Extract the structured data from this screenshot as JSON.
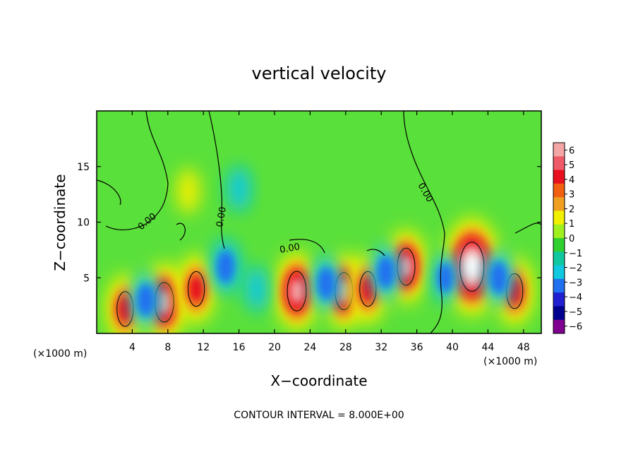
{
  "chart_data": {
    "type": "heatmap",
    "title": "vertical velocity",
    "xlabel": "X−coordinate",
    "ylabel": "Z−coordinate",
    "x_unit": "(×1000 m)",
    "x_unit_right": "(×1000 m)",
    "xlim": [
      0,
      50
    ],
    "ylim": [
      0,
      20
    ],
    "x_ticks": [
      4,
      8,
      12,
      16,
      20,
      24,
      28,
      32,
      36,
      40,
      44,
      48
    ],
    "y_ticks": [
      5,
      10,
      15
    ],
    "footer": "CONTOUR INTERVAL = 8.000E+00",
    "contour_label": "0.00",
    "colorbar": {
      "ticks": [
        "6",
        "5",
        "4",
        "3",
        "2",
        "1",
        "0",
        "−1",
        "−2",
        "−3",
        "−4",
        "−5",
        "−6"
      ],
      "colors": [
        "#f4a6a6",
        "#ee5a68",
        "#e8101e",
        "#f06010",
        "#f0a020",
        "#f0f000",
        "#a0f020",
        "#30d030",
        "#10c8a0",
        "#10c8e0",
        "#2070f0",
        "#2020d0",
        "#000090",
        "#800090"
      ]
    },
    "features": [
      {
        "x": 3.2,
        "z": 2.2,
        "w": 8
      },
      {
        "x": 7.6,
        "z": 2.8,
        "w": 10
      },
      {
        "x": 11.2,
        "z": 4.0,
        "w": 8
      },
      {
        "x": 14.5,
        "z": 6.0,
        "w": -5
      },
      {
        "x": 22.5,
        "z": 3.8,
        "w": 10
      },
      {
        "x": 27.8,
        "z": 3.8,
        "w": 9
      },
      {
        "x": 30.5,
        "z": 4.0,
        "w": 8
      },
      {
        "x": 34.8,
        "z": 6.0,
        "w": 9
      },
      {
        "x": 42.2,
        "z": 6.0,
        "w": 14
      },
      {
        "x": 47.0,
        "z": 3.8,
        "w": 8
      },
      {
        "x": 10.3,
        "z": 12.8,
        "w": 3
      },
      {
        "x": 16.0,
        "z": 13.0,
        "w": -3
      },
      {
        "x": 5.5,
        "z": 3.0,
        "w": -5
      },
      {
        "x": 18.0,
        "z": 4.0,
        "w": -3
      },
      {
        "x": 25.8,
        "z": 4.5,
        "w": -5
      },
      {
        "x": 32.5,
        "z": 5.5,
        "w": -5
      },
      {
        "x": 39.2,
        "z": 5.0,
        "w": -4
      },
      {
        "x": 45.2,
        "z": 5.0,
        "w": -5
      }
    ]
  }
}
